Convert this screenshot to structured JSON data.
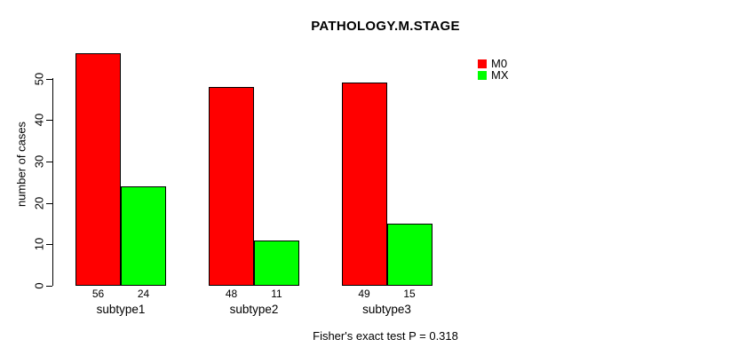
{
  "title": "PATHOLOGY.M.STAGE",
  "footer": "Fisher's exact test P = 0.318",
  "y_axis": {
    "label": "number of cases",
    "ticks": [
      "0",
      "10",
      "20",
      "30",
      "40",
      "50"
    ]
  },
  "legend": {
    "position": "top-right",
    "items": [
      {
        "label": "M0",
        "color": "#ff0000"
      },
      {
        "label": "MX",
        "color": "#00ff00"
      }
    ]
  },
  "chart_data": {
    "type": "bar",
    "title": "PATHOLOGY.M.STAGE",
    "categories": [
      "subtype1",
      "subtype2",
      "subtype3"
    ],
    "series": [
      {
        "name": "M0",
        "color": "#ff0000",
        "values": [
          56,
          48,
          49
        ]
      },
      {
        "name": "MX",
        "color": "#00ff00",
        "values": [
          24,
          11,
          15
        ]
      }
    ],
    "value_labels": [
      [
        "56",
        "24"
      ],
      [
        "48",
        "11"
      ],
      [
        "49",
        "15"
      ]
    ],
    "ylabel": "number of cases",
    "xlabel": "",
    "ylim": [
      0,
      50
    ],
    "yticks": [
      0,
      10,
      20,
      30,
      40,
      50
    ],
    "grid": false,
    "legend_position": "top-right",
    "annotation": "Fisher's exact test P = 0.318"
  }
}
